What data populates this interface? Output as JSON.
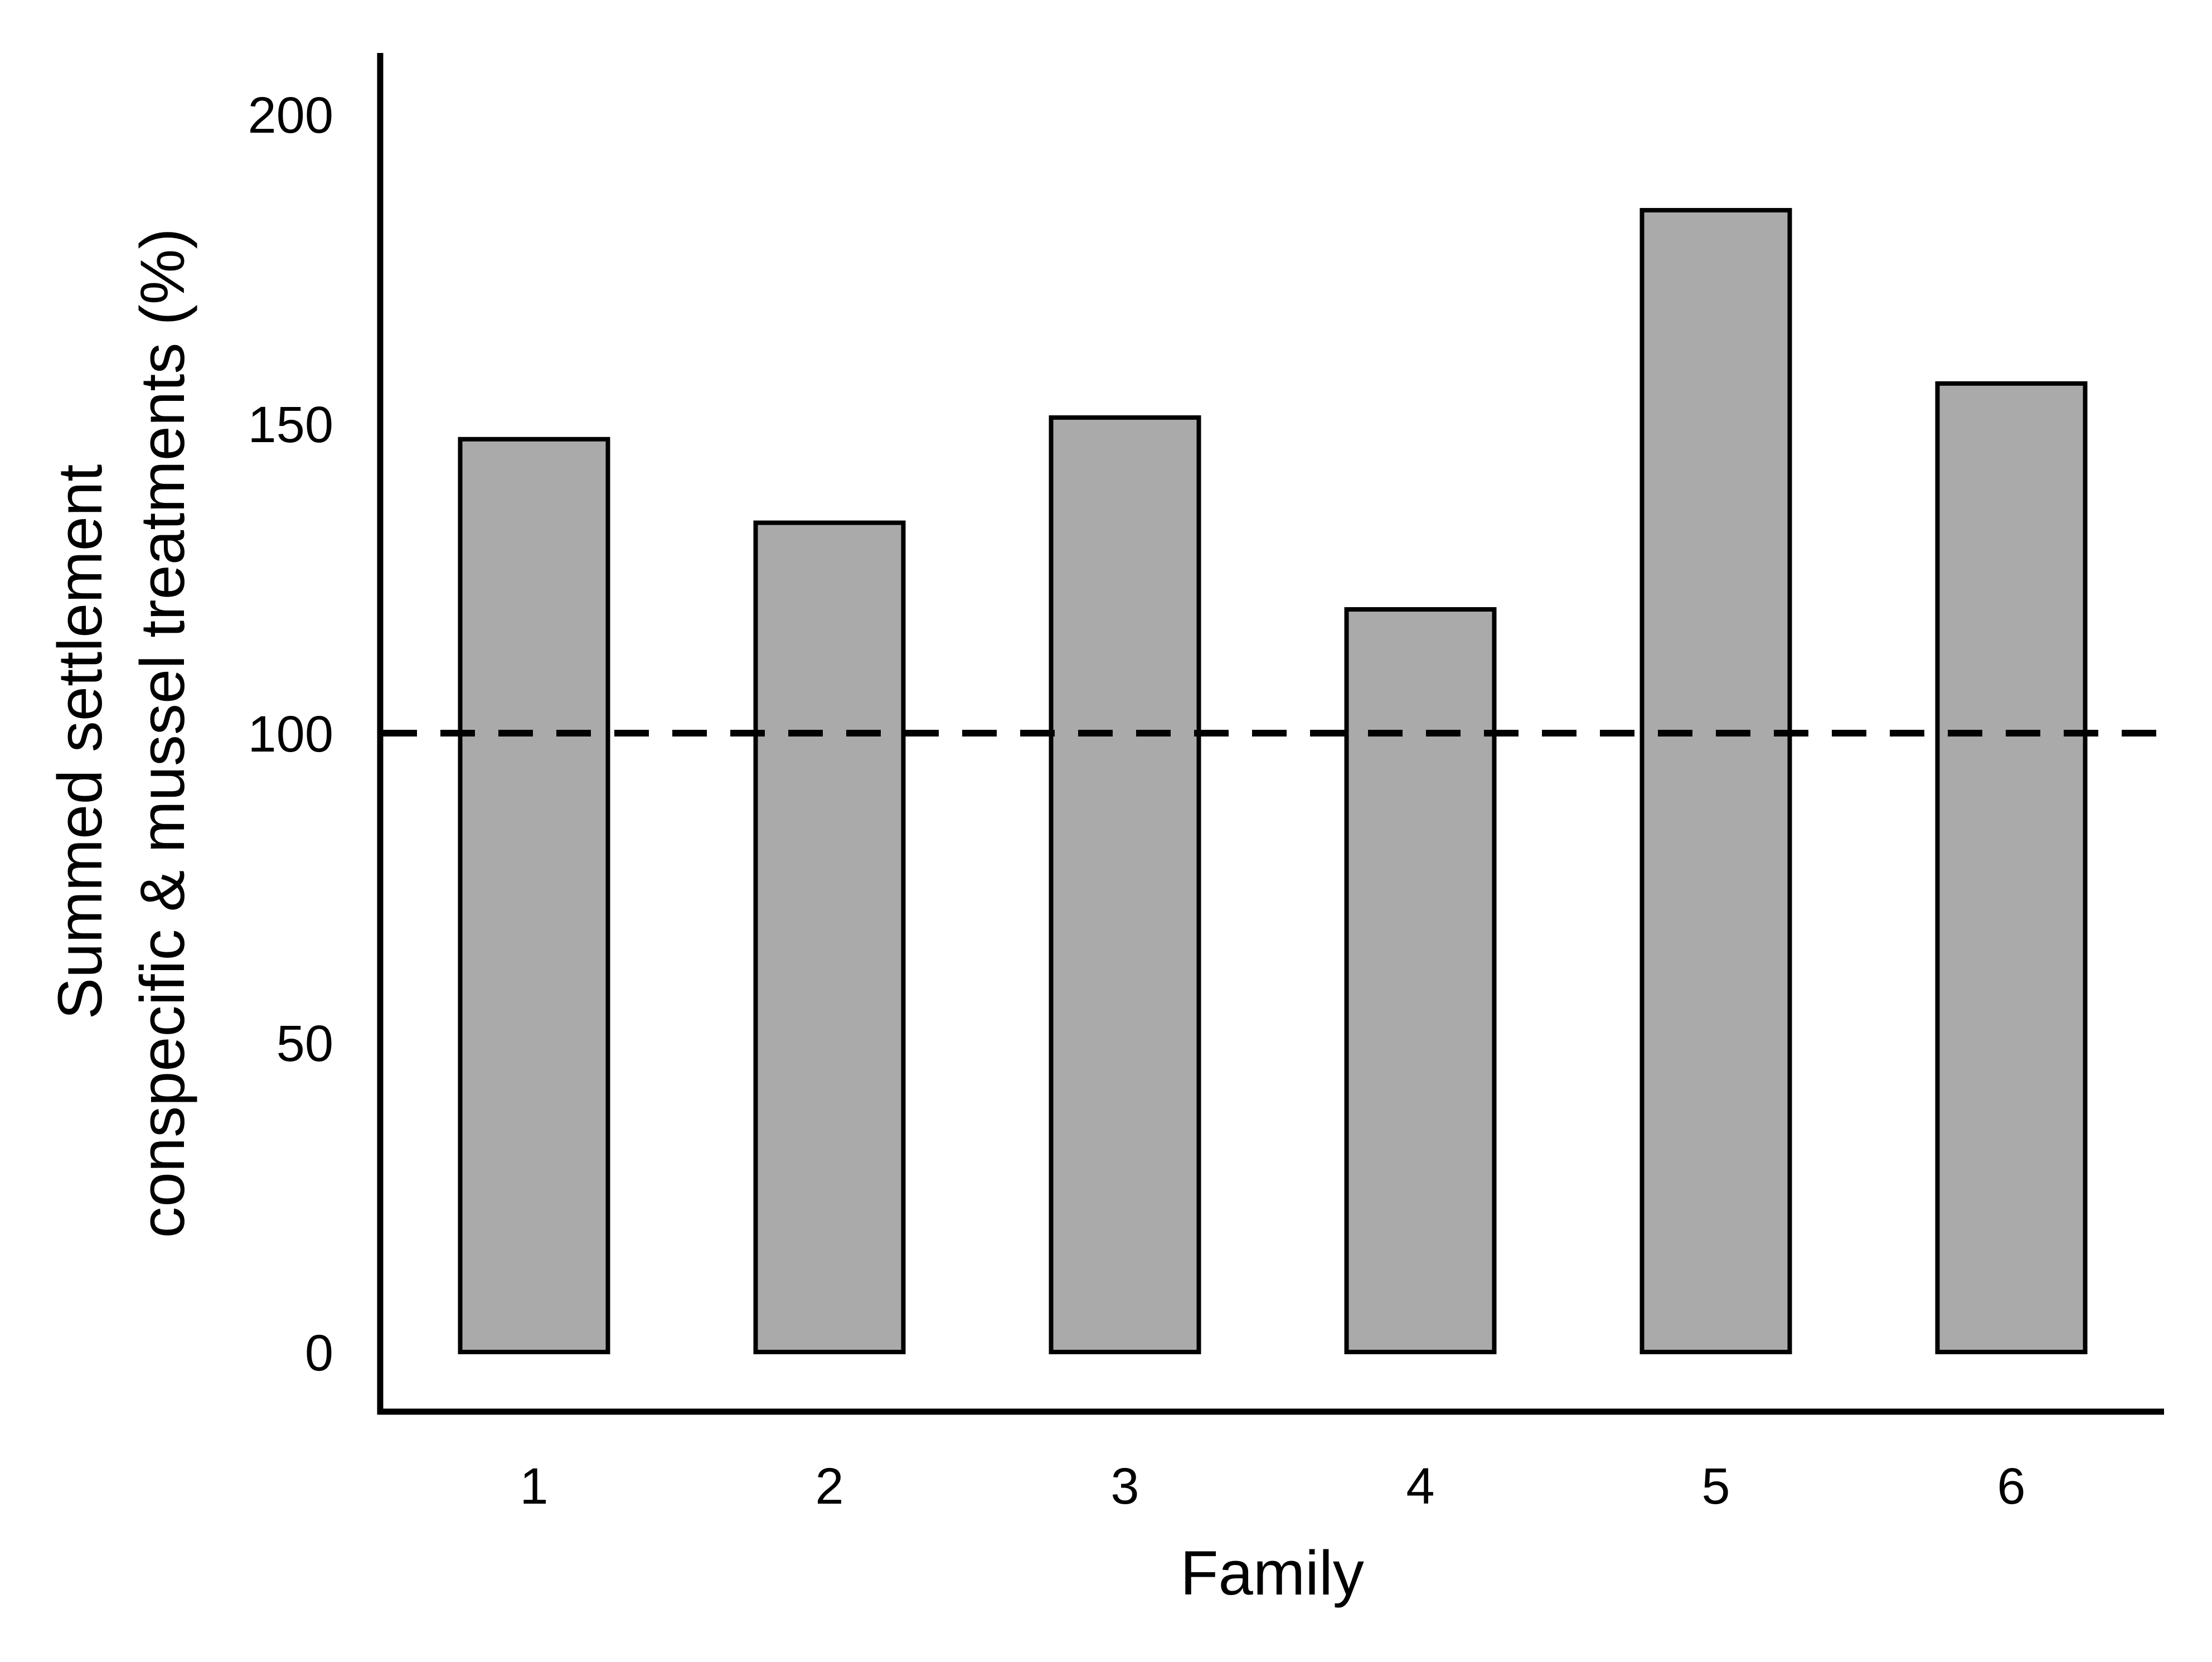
{
  "chart_data": {
    "type": "bar",
    "title": "",
    "xlabel": "Family",
    "ylabel_lines": [
      "Summed settlement",
      "conspecific & mussel treatments (%)"
    ],
    "categories": [
      "1",
      "2",
      "3",
      "4",
      "5",
      "6"
    ],
    "values": [
      147.5,
      134,
      151,
      120,
      184.5,
      156.5
    ],
    "ylim": [
      -10,
      210
    ],
    "yticks": [
      0,
      50,
      100,
      150,
      200
    ],
    "ytick_labels": [
      "0",
      "50",
      "100",
      "150",
      "200"
    ],
    "reference_line": {
      "value": 100,
      "style": "dashed"
    },
    "bar_color": "#aaaaaa",
    "bar_edge_color": "#000000",
    "grid": false,
    "legend": "none"
  }
}
